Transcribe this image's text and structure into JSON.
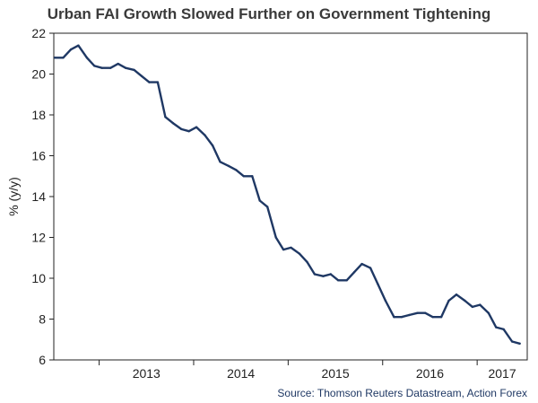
{
  "chart_data": {
    "type": "line",
    "title": "Urban FAI Growth Slowed Further on Government Tightening",
    "ylabel": "% (y/y)",
    "xlabel": "",
    "source": "Source: Thomson Reuters Datastream, Action Forex",
    "ylim": [
      6,
      22
    ],
    "yticks": [
      6,
      8,
      10,
      12,
      14,
      16,
      18,
      20,
      22
    ],
    "xlim": [
      2012.52,
      2017.53
    ],
    "year_labels": [
      "2013",
      "2014",
      "2015",
      "2016",
      "2017"
    ],
    "grid": false,
    "line_color": "#1f3864",
    "series": [
      {
        "x": [
          2012.53,
          2012.62,
          2012.7,
          2012.78,
          2012.87,
          2012.95,
          2013.03,
          2013.12,
          2013.2,
          2013.28,
          2013.37,
          2013.45,
          2013.53,
          2013.62,
          2013.7,
          2013.78,
          2013.87,
          2013.95,
          2014.03,
          2014.12,
          2014.2,
          2014.28,
          2014.37,
          2014.45,
          2014.53,
          2014.62,
          2014.7,
          2014.78,
          2014.87,
          2014.95,
          2015.03,
          2015.12,
          2015.2,
          2015.28,
          2015.37,
          2015.45,
          2015.53,
          2015.62,
          2015.7,
          2015.78,
          2015.87,
          2015.95,
          2016.03,
          2016.12,
          2016.2,
          2016.28,
          2016.37,
          2016.45,
          2016.53,
          2016.62,
          2016.7,
          2016.78,
          2016.87,
          2016.95,
          2017.03,
          2017.12,
          2017.2,
          2017.28,
          2017.37,
          2017.45
        ],
        "values": [
          20.8,
          20.8,
          21.2,
          21.4,
          20.8,
          20.4,
          20.3,
          20.3,
          20.5,
          20.3,
          20.2,
          19.9,
          19.6,
          19.6,
          17.9,
          17.6,
          17.3,
          17.2,
          17.4,
          17.0,
          16.5,
          15.7,
          15.5,
          15.3,
          15.0,
          15.0,
          13.8,
          13.5,
          12.0,
          11.4,
          11.5,
          11.2,
          10.8,
          10.2,
          10.1,
          10.2,
          9.9,
          9.9,
          10.3,
          10.7,
          10.5,
          9.7,
          8.9,
          8.1,
          8.1,
          8.2,
          8.3,
          8.3,
          8.1,
          8.1,
          8.9,
          9.2,
          8.9,
          8.6,
          8.7,
          8.3,
          7.6,
          7.5,
          6.9,
          6.8
        ]
      }
    ]
  }
}
